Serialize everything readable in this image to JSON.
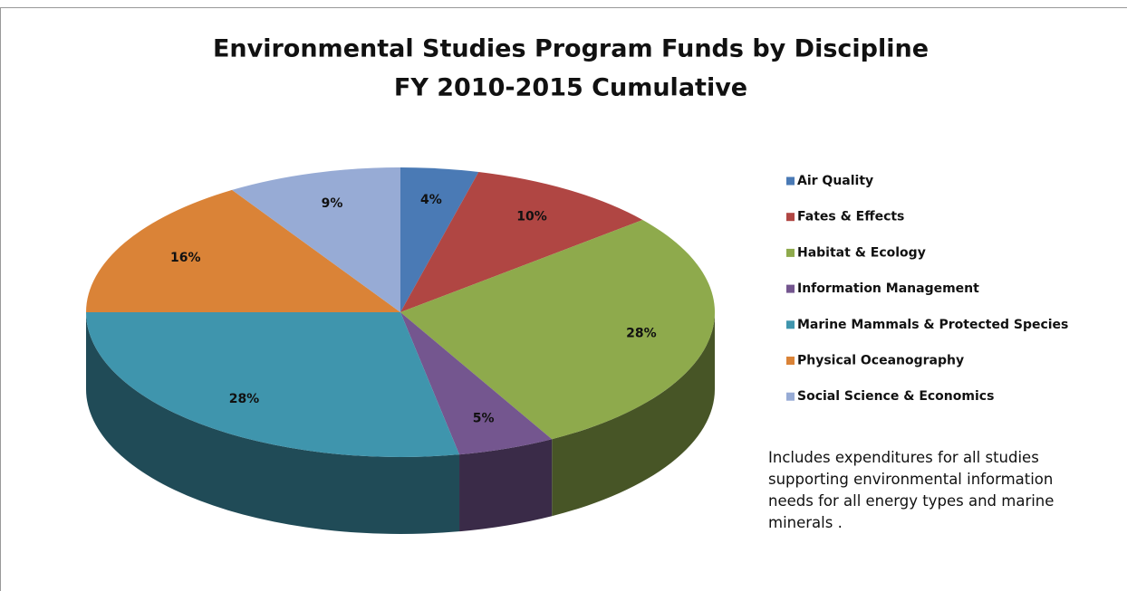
{
  "chart_data": {
    "type": "pie",
    "title": "Environmental Studies Program Funds by Discipline",
    "subtitle": "FY 2010-2015 Cumulative",
    "categories": [
      "Air Quality",
      "Fates & Effects",
      "Habitat & Ecology",
      "Information Management",
      "Marine Mammals & Protected Species",
      "Physical Oceanography",
      "Social Science & Economics"
    ],
    "values": [
      4,
      10,
      28,
      5,
      28,
      16,
      9
    ],
    "value_labels": [
      "4%",
      "10%",
      "28%",
      "5%",
      "28%",
      "16%",
      "9%"
    ],
    "colors": [
      "#4a7ab5",
      "#b04643",
      "#8eaa4c",
      "#74568f",
      "#3f95ad",
      "#da8337",
      "#97abd5"
    ],
    "legend": "right",
    "annotation": "Includes expenditures for all studies supporting environmental information needs for all energy types and marine minerals ."
  }
}
